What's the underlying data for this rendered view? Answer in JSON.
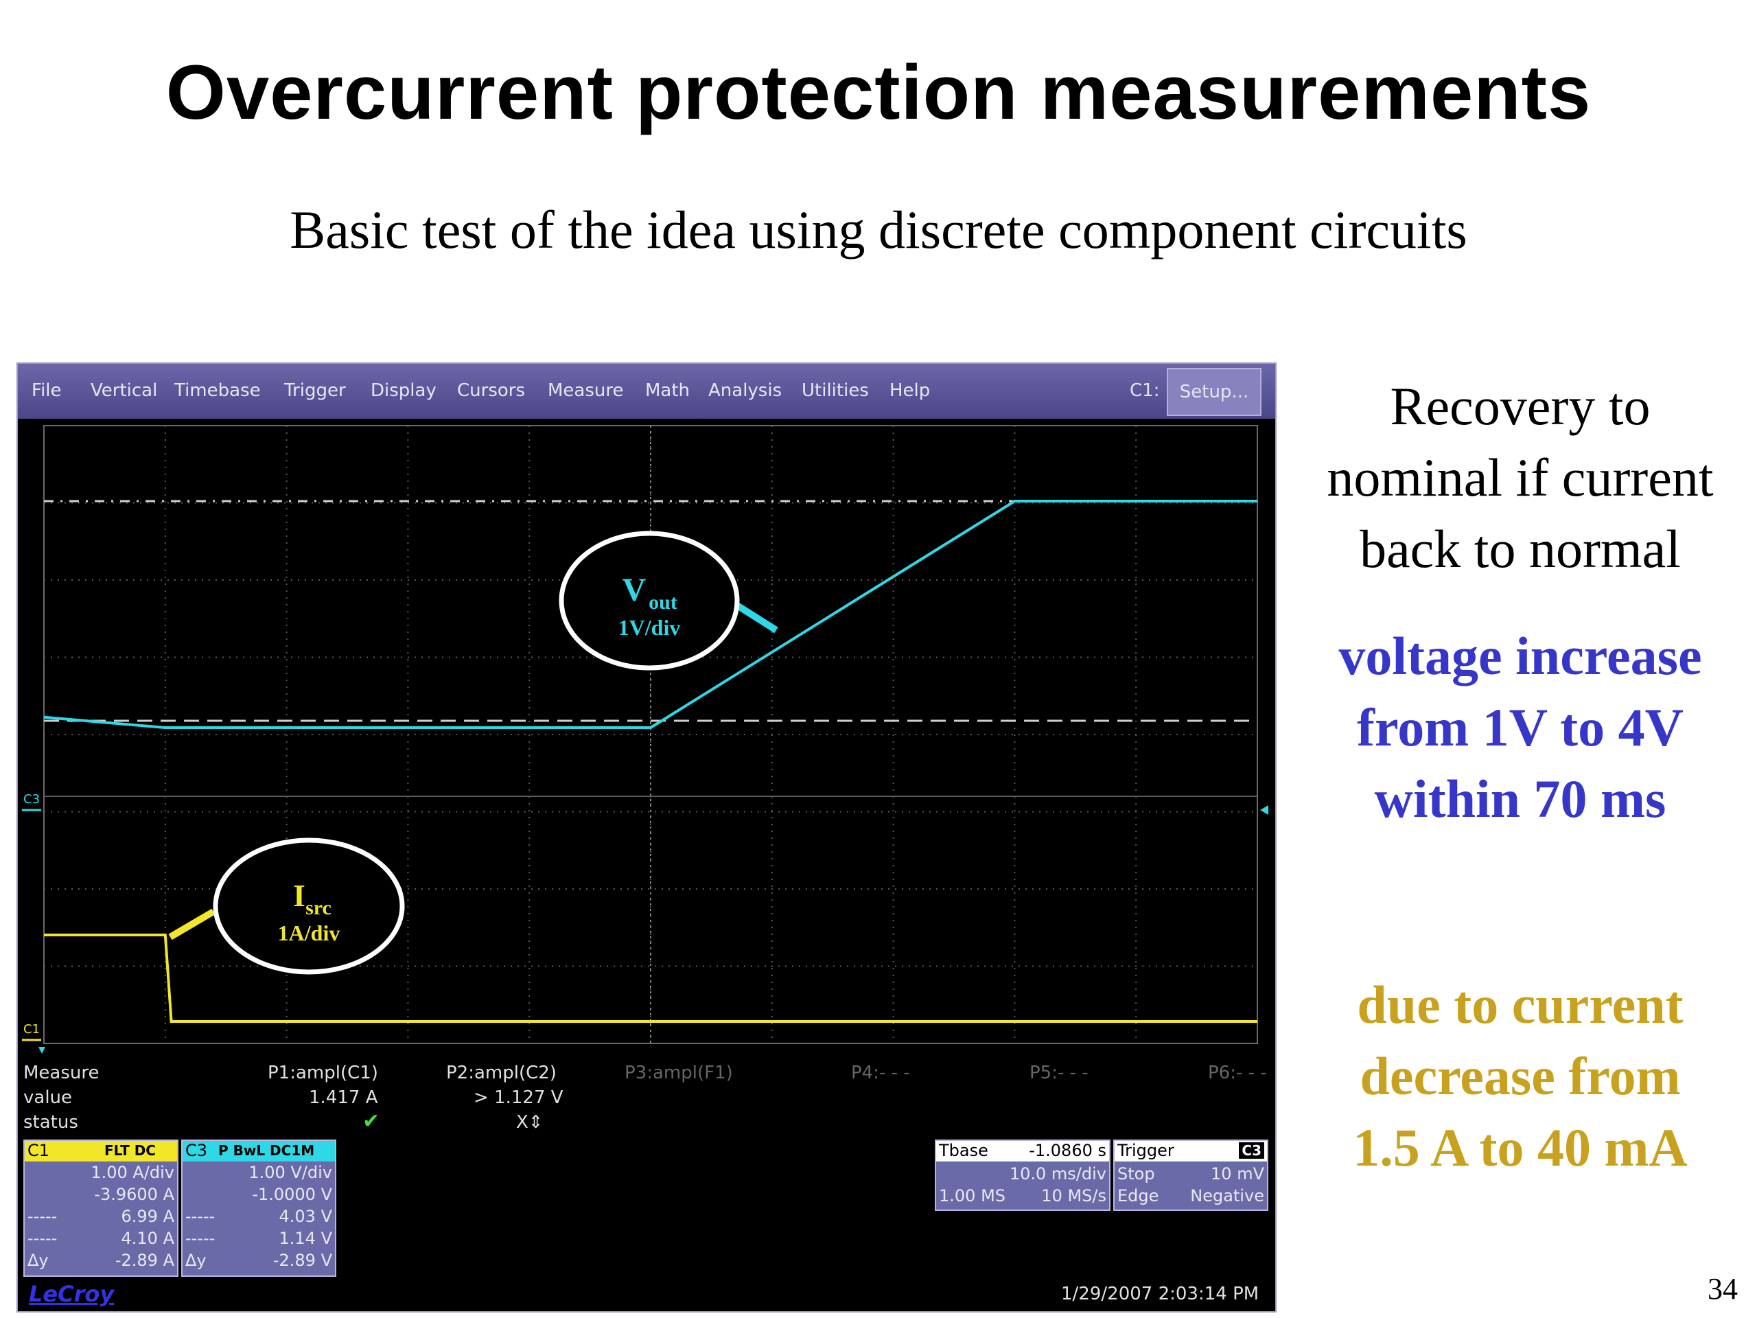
{
  "slide": {
    "title": "Overcurrent protection measurements",
    "subtitle": "Basic test of the idea using discrete component circuits",
    "page_number": "34"
  },
  "scope": {
    "menu": [
      "File",
      "Vertical",
      "Timebase",
      "Trigger",
      "Display",
      "Cursors",
      "Measure",
      "Math",
      "Analysis",
      "Utilities",
      "Help"
    ],
    "channel_label": "C1:",
    "setup_button": "Setup...",
    "marker_c3": "C3",
    "marker_c1": "C1",
    "annotations": {
      "vout_main": "V",
      "vout_sub": "out",
      "vout_scale": "1V/div",
      "isrc_main": "I",
      "isrc_sub": "src",
      "isrc_scale": "1A/div"
    },
    "measure": {
      "label": "Measure",
      "row_value": "value",
      "row_status": "status",
      "params": [
        {
          "name": "P1:ampl(C1)",
          "value": "1.417 A"
        },
        {
          "name": "P2:ampl(C2)",
          "value": "> 1.127 V",
          "status": "X⇕"
        },
        {
          "name": "P3:ampl(F1)"
        },
        {
          "name": "P4:- - -"
        },
        {
          "name": "P5:- - -"
        },
        {
          "name": "P6:- - -"
        }
      ]
    },
    "c1_box": {
      "name": "C1",
      "tags": "FLT DC",
      "rows": [
        [
          "",
          "1.00 A/div"
        ],
        [
          "",
          "-3.9600 A"
        ],
        [
          "-----",
          "6.99 A"
        ],
        [
          "-----",
          "4.10 A"
        ],
        [
          "Δy",
          "-2.89 A"
        ]
      ]
    },
    "c3_box": {
      "name": "C3",
      "tags": "P BwL DC1M",
      "rows": [
        [
          "",
          "1.00 V/div"
        ],
        [
          "",
          "-1.0000 V"
        ],
        [
          "-----",
          "4.03 V"
        ],
        [
          "-----",
          "1.14 V"
        ],
        [
          "Δy",
          "-2.89 V"
        ]
      ]
    },
    "timebase": {
      "label": "Tbase",
      "value": "-1.0860 s",
      "row2": "10.0 ms/div",
      "row3a": "1.00 MS",
      "row3b": "10 MS/s"
    },
    "trigger": {
      "label": "Trigger",
      "channel": "C3",
      "mode": "Stop",
      "level": "10 mV",
      "type": "Edge",
      "slope": "Negative"
    },
    "brand": "LeCroy",
    "timestamp": "1/29/2007 2:03:14 PM"
  },
  "notes": {
    "recovery": [
      "Recovery to",
      "nominal if current",
      "back to normal"
    ],
    "voltage": [
      "voltage increase",
      "from 1V to 4V",
      "within 70 ms"
    ],
    "current": [
      "due to current",
      "decrease from",
      "1.5 A to 40 mA"
    ]
  },
  "colors": {
    "vout_trace": "#2ed8e6",
    "isrc_trace": "#f2e628",
    "note_voltage": "#3636c8",
    "note_current": "#c8a21e",
    "menubar": "#5c589a",
    "scope_bg": "#000000"
  },
  "chart_data": {
    "type": "line",
    "x_unit": "ms",
    "x_range": [
      0,
      100
    ],
    "series": [
      {
        "name": "Vout",
        "unit": "V",
        "x": [
          0,
          10,
          50,
          80,
          100
        ],
        "y": [
          1.14,
          1.0,
          1.0,
          4.03,
          4.03
        ]
      },
      {
        "name": "Isrc",
        "unit": "A",
        "x": [
          0,
          10,
          10.5,
          100
        ],
        "y": [
          1.5,
          1.5,
          0.04,
          0.04
        ]
      }
    ]
  }
}
